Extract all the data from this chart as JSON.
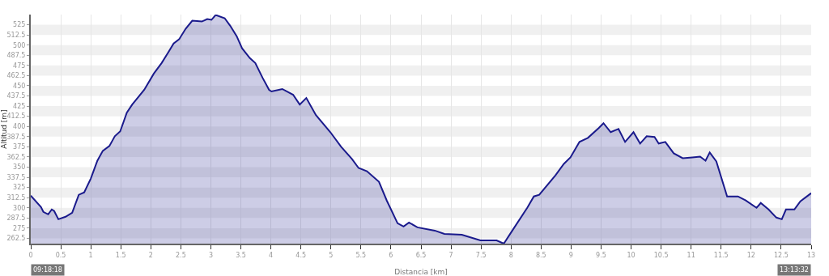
{
  "chart_data": {
    "type": "area",
    "xlabel": "Distancia [km]",
    "ylabel": "Altitud [m]",
    "x": [
      0,
      0.17,
      0.21,
      0.29,
      0.35,
      0.39,
      0.46,
      0.58,
      0.69,
      0.8,
      0.89,
      1.0,
      1.11,
      1.2,
      1.31,
      1.4,
      1.49,
      1.6,
      1.69,
      1.8,
      1.89,
      2.05,
      2.18,
      2.29,
      2.38,
      2.47,
      2.58,
      2.69,
      2.85,
      2.94,
      3.01,
      3.08,
      3.23,
      3.32,
      3.43,
      3.52,
      3.65,
      3.74,
      3.86,
      3.97,
      4.01,
      4.19,
      4.37,
      4.48,
      4.59,
      4.75,
      4.99,
      5.17,
      5.35,
      5.46,
      5.6,
      5.8,
      5.93,
      6.11,
      6.21,
      6.3,
      6.44,
      6.73,
      6.89,
      7.18,
      7.49,
      7.76,
      7.88,
      8.03,
      8.27,
      8.38,
      8.47,
      8.74,
      8.88,
      8.99,
      9.14,
      9.28,
      9.46,
      9.54,
      9.66,
      9.79,
      9.9,
      10.04,
      10.15,
      10.26,
      10.39,
      10.46,
      10.57,
      10.71,
      10.86,
      11.02,
      11.15,
      11.24,
      11.31,
      11.42,
      11.6,
      11.78,
      11.91,
      12.09,
      12.16,
      12.29,
      12.42,
      12.51,
      12.58,
      12.72,
      12.82,
      13.0
    ],
    "series": [
      {
        "color": "#1a1a8c",
        "values": [
          315,
          301,
          295,
          292,
          298,
          296,
          286,
          289,
          294,
          316,
          319,
          336,
          358,
          370,
          376,
          388,
          394,
          417,
          427,
          437,
          445,
          465,
          478,
          491,
          502,
          507,
          520,
          530,
          529,
          532,
          531,
          537,
          533,
          524,
          511,
          496,
          484,
          478,
          460,
          445,
          443,
          446,
          439,
          427,
          435,
          414,
          393,
          375,
          360,
          349,
          345,
          332,
          309,
          281,
          277,
          282,
          276,
          272,
          268,
          267,
          260,
          260,
          256,
          273,
          300,
          314,
          316,
          340,
          354,
          362,
          381,
          386,
          398,
          404,
          393,
          397,
          381,
          393,
          379,
          388,
          387,
          379,
          381,
          367,
          361,
          362,
          363,
          358,
          368,
          357,
          314,
          314,
          309,
          300,
          306,
          298,
          288,
          286,
          298,
          298,
          308,
          318
        ]
      }
    ],
    "xlim": [
      0,
      13
    ],
    "ylim": [
      256,
      537.5
    ],
    "xticks": [
      0,
      0.5,
      1,
      1.5,
      2,
      2.5,
      3,
      3.5,
      4,
      4.5,
      5,
      5.5,
      6,
      6.5,
      7,
      7.5,
      8,
      8.5,
      9,
      9.5,
      10,
      10.5,
      11,
      11.5,
      12,
      12.5,
      13
    ],
    "yticks": [
      262.5,
      275,
      287.5,
      300,
      312.5,
      325,
      337.5,
      350,
      362.5,
      375,
      387.5,
      400,
      412.5,
      425,
      437.5,
      450,
      462.5,
      475,
      487.5,
      500,
      512.5,
      525
    ],
    "grid": true,
    "marker": "none",
    "line_style": "solid",
    "annotations": [
      "09:18:18",
      "13:13:32"
    ]
  }
}
